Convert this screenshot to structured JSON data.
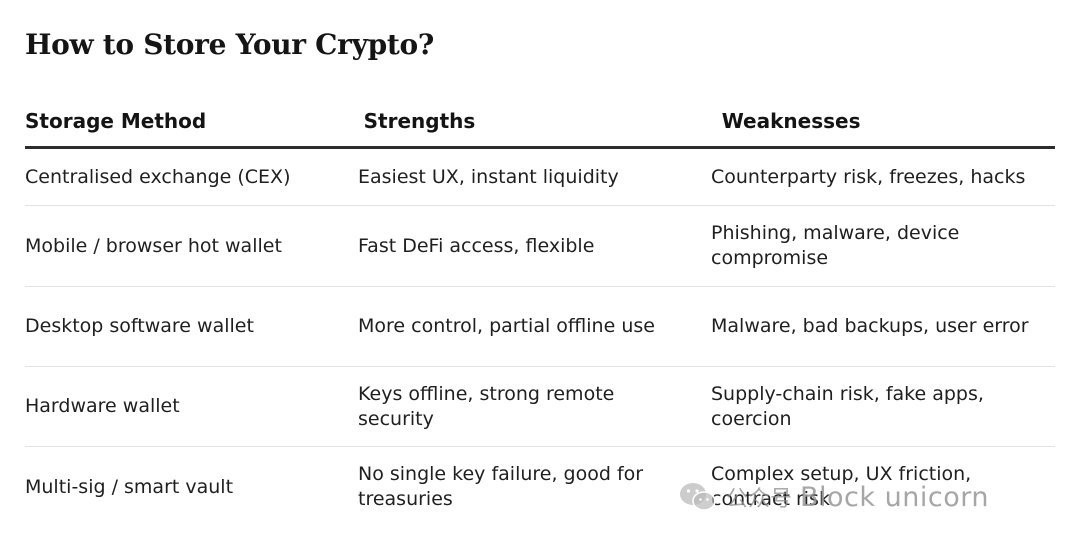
{
  "title": "How to Store Your Crypto?",
  "table": {
    "headers": [
      "Storage Method",
      "Strengths",
      "Weaknesses"
    ],
    "rows": [
      [
        "Centralised exchange (CEX)",
        "Easiest UX, instant liquidity",
        "Counterparty risk, freezes, hacks"
      ],
      [
        "Mobile / browser hot wallet",
        "Fast DeFi access, flexible",
        "Phishing, malware, device compromise"
      ],
      [
        "Desktop software wallet",
        "More control, partial offline use",
        "Malware, bad backups, user error"
      ],
      [
        "Hardware wallet",
        "Keys offline, strong remote security",
        "Supply-chain risk, fake apps, coercion"
      ],
      [
        "Multi-sig / smart vault",
        "No single key failure, good for treasuries",
        "Complex setup, UX friction, contract risk"
      ]
    ]
  },
  "watermark": {
    "platform": "公众号",
    "text": "Block unicorn",
    "icon": "wechat-icon"
  }
}
